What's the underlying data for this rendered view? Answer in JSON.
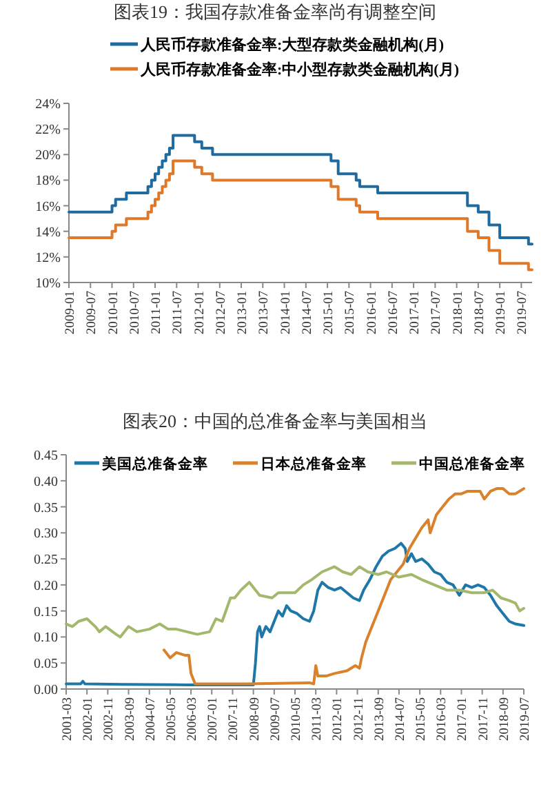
{
  "chart_data": [
    {
      "type": "step",
      "title": "图表19：我国存款准备金率尚有调整空间",
      "legend": "top",
      "grid": false,
      "xlim": [
        "2009-01",
        "2019-10"
      ],
      "xticks": [
        {
          "value": "2009-01",
          "label": "2009-01"
        },
        {
          "value": "2009-07",
          "label": "2009-07"
        },
        {
          "value": "2010-01",
          "label": "2010-01"
        },
        {
          "value": "2010-07",
          "label": "2010-07"
        },
        {
          "value": "2011-01",
          "label": "2011-01"
        },
        {
          "value": "2011-07",
          "label": "2011-07"
        },
        {
          "value": "2012-01",
          "label": "2012-01"
        },
        {
          "value": "2012-07",
          "label": "2012-07"
        },
        {
          "value": "2013-01",
          "label": "2013-01"
        },
        {
          "value": "2013-07",
          "label": "2013-07"
        },
        {
          "value": "2014-01",
          "label": "2014-01"
        },
        {
          "value": "2014-07",
          "label": "2014-07"
        },
        {
          "value": "2015-01",
          "label": "2015-01"
        },
        {
          "value": "2015-07",
          "label": "2015-07"
        },
        {
          "value": "2016-01",
          "label": "2016-01"
        },
        {
          "value": "2016-07",
          "label": "2016-07"
        },
        {
          "value": "2017-01",
          "label": "2017-01"
        },
        {
          "value": "2017-07",
          "label": "2017-07"
        },
        {
          "value": "2018-01",
          "label": "2018-01"
        },
        {
          "value": "2018-07",
          "label": "2018-07"
        },
        {
          "value": "2019-01",
          "label": "2019-01"
        },
        {
          "value": "2019-07",
          "label": "2019-07"
        }
      ],
      "ylim": [
        10,
        24
      ],
      "yticks": [
        {
          "value": 10,
          "label": "10%"
        },
        {
          "value": 12,
          "label": "12%"
        },
        {
          "value": 14,
          "label": "14%"
        },
        {
          "value": 16,
          "label": "16%"
        },
        {
          "value": 18,
          "label": "18%"
        },
        {
          "value": 20,
          "label": "20%"
        },
        {
          "value": 22,
          "label": "22%"
        },
        {
          "value": 24,
          "label": "24%"
        }
      ],
      "series": [
        {
          "name": "人民币存款准备金率:大型存款类金融机构(月)",
          "color": "#1f6a9e",
          "x": [
            "2009-01",
            "2010-01",
            "2010-02",
            "2010-05",
            "2010-11",
            "2010-12",
            "2011-01",
            "2011-02",
            "2011-03",
            "2011-04",
            "2011-05",
            "2011-06",
            "2011-12",
            "2012-02",
            "2012-05",
            "2015-02",
            "2015-04",
            "2015-09",
            "2015-10",
            "2016-03",
            "2018-04",
            "2018-07",
            "2018-10",
            "2019-01",
            "2019-09",
            "2019-10"
          ],
          "values": [
            15.5,
            16,
            16.5,
            17,
            17.5,
            18,
            18.5,
            19,
            19.5,
            20,
            20.5,
            21.5,
            21,
            20.5,
            20,
            19.5,
            18.5,
            18,
            17.5,
            17,
            16,
            15.5,
            14.5,
            13.5,
            13,
            13
          ]
        },
        {
          "name": "人民币存款准备金率:中小型存款类金融机构(月)",
          "color": "#e0782a",
          "x": [
            "2009-01",
            "2010-01",
            "2010-02",
            "2010-05",
            "2010-11",
            "2010-12",
            "2011-01",
            "2011-02",
            "2011-03",
            "2011-04",
            "2011-05",
            "2011-06",
            "2011-12",
            "2012-02",
            "2012-05",
            "2015-02",
            "2015-04",
            "2015-09",
            "2015-10",
            "2016-03",
            "2018-04",
            "2018-07",
            "2018-10",
            "2019-01",
            "2019-09",
            "2019-10"
          ],
          "values": [
            13.5,
            14,
            14.5,
            15,
            15.5,
            16,
            16.5,
            17,
            17.5,
            18,
            18.5,
            19.5,
            19,
            18.5,
            18,
            17.5,
            16.5,
            16,
            15.5,
            15,
            14,
            13.5,
            12.5,
            11.5,
            11,
            11
          ]
        }
      ]
    },
    {
      "type": "line",
      "title": "图表20：中国的总准备金率与美国相当",
      "legend": "top",
      "grid": false,
      "xlim": [
        "2001-03",
        "2019-07"
      ],
      "xticks": [
        {
          "value": "2001-03",
          "label": "2001-03"
        },
        {
          "value": "2002-01",
          "label": "2002-01"
        },
        {
          "value": "2002-11",
          "label": "2002-11"
        },
        {
          "value": "2003-09",
          "label": "2003-09"
        },
        {
          "value": "2004-07",
          "label": "2004-07"
        },
        {
          "value": "2005-05",
          "label": "2005-05"
        },
        {
          "value": "2006-03",
          "label": "2006-03"
        },
        {
          "value": "2007-01",
          "label": "2007-01"
        },
        {
          "value": "2007-11",
          "label": "2007-11"
        },
        {
          "value": "2008-09",
          "label": "2008-09"
        },
        {
          "value": "2009-07",
          "label": "2009-07"
        },
        {
          "value": "2010-05",
          "label": "2010-05"
        },
        {
          "value": "2011-03",
          "label": "2011-03"
        },
        {
          "value": "2012-01",
          "label": "2012-01"
        },
        {
          "value": "2012-11",
          "label": "2012-11"
        },
        {
          "value": "2013-09",
          "label": "2013-09"
        },
        {
          "value": "2014-07",
          "label": "2014-07"
        },
        {
          "value": "2015-05",
          "label": "2015-05"
        },
        {
          "value": "2016-03",
          "label": "2016-03"
        },
        {
          "value": "2017-01",
          "label": "2017-01"
        },
        {
          "value": "2017-11",
          "label": "2017-11"
        },
        {
          "value": "2018-09",
          "label": "2018-09"
        },
        {
          "value": "2019-07",
          "label": "2019-07"
        }
      ],
      "ylim": [
        0,
        0.45
      ],
      "yticks": [
        {
          "value": 0,
          "label": "0.00"
        },
        {
          "value": 0.05,
          "label": "0.05"
        },
        {
          "value": 0.1,
          "label": "0.10"
        },
        {
          "value": 0.15,
          "label": "0.15"
        },
        {
          "value": 0.2,
          "label": "0.20"
        },
        {
          "value": 0.25,
          "label": "0.25"
        },
        {
          "value": 0.3,
          "label": "0.30"
        },
        {
          "value": 0.35,
          "label": "0.35"
        },
        {
          "value": 0.4,
          "label": "0.40"
        },
        {
          "value": 0.45,
          "label": "0.45"
        }
      ],
      "series": [
        {
          "name": "美国总准备金率",
          "color": "#1f77a8",
          "x": [
            "2001-03",
            "2001-10",
            "2001-11",
            "2001-12",
            "2003-06",
            "2006-01",
            "2008-09",
            "2008-10",
            "2008-11",
            "2008-12",
            "2009-01",
            "2009-03",
            "2009-05",
            "2009-07",
            "2009-09",
            "2009-11",
            "2010-01",
            "2010-03",
            "2010-06",
            "2010-09",
            "2010-12",
            "2011-02",
            "2011-04",
            "2011-06",
            "2011-09",
            "2011-12",
            "2012-03",
            "2012-06",
            "2012-09",
            "2012-12",
            "2013-02",
            "2013-05",
            "2013-08",
            "2013-11",
            "2014-02",
            "2014-05",
            "2014-08",
            "2014-10",
            "2014-11",
            "2015-01",
            "2015-03",
            "2015-06",
            "2015-09",
            "2015-12",
            "2016-03",
            "2016-06",
            "2016-09",
            "2016-12",
            "2017-03",
            "2017-06",
            "2017-09",
            "2017-12",
            "2018-03",
            "2018-06",
            "2018-09",
            "2018-12",
            "2019-03",
            "2019-07"
          ],
          "values": [
            0.01,
            0.01,
            0.015,
            0.01,
            0.009,
            0.008,
            0.008,
            0.05,
            0.11,
            0.12,
            0.1,
            0.12,
            0.11,
            0.13,
            0.15,
            0.14,
            0.16,
            0.15,
            0.145,
            0.135,
            0.13,
            0.15,
            0.19,
            0.205,
            0.195,
            0.19,
            0.195,
            0.185,
            0.175,
            0.17,
            0.19,
            0.21,
            0.235,
            0.255,
            0.265,
            0.27,
            0.28,
            0.27,
            0.245,
            0.26,
            0.245,
            0.25,
            0.24,
            0.225,
            0.22,
            0.205,
            0.2,
            0.18,
            0.2,
            0.195,
            0.2,
            0.195,
            0.18,
            0.16,
            0.145,
            0.13,
            0.125,
            0.122
          ]
        },
        {
          "name": "日本总准备金率",
          "color": "#d9822b",
          "x": [
            "2005-02",
            "2005-05",
            "2005-08",
            "2005-12",
            "2006-02",
            "2006-03",
            "2006-05",
            "2008-06",
            "2010-12",
            "2011-02",
            "2011-03",
            "2011-04",
            "2011-08",
            "2011-12",
            "2012-06",
            "2012-10",
            "2012-12",
            "2013-01",
            "2013-03",
            "2013-06",
            "2013-09",
            "2013-12",
            "2014-03",
            "2014-06",
            "2014-09",
            "2014-12",
            "2015-03",
            "2015-06",
            "2015-09",
            "2015-10",
            "2016-01",
            "2016-04",
            "2016-07",
            "2016-10",
            "2017-01",
            "2017-04",
            "2017-07",
            "2017-10",
            "2017-12",
            "2018-03",
            "2018-06",
            "2018-09",
            "2018-12",
            "2019-03",
            "2019-05",
            "2019-07"
          ],
          "values": [
            0.075,
            0.06,
            0.07,
            0.065,
            0.065,
            0.03,
            0.01,
            0.01,
            0.012,
            0.01,
            0.045,
            0.025,
            0.025,
            0.03,
            0.035,
            0.045,
            0.04,
            0.06,
            0.09,
            0.12,
            0.15,
            0.18,
            0.21,
            0.225,
            0.24,
            0.27,
            0.29,
            0.31,
            0.325,
            0.3,
            0.335,
            0.35,
            0.365,
            0.375,
            0.375,
            0.38,
            0.38,
            0.38,
            0.365,
            0.38,
            0.385,
            0.385,
            0.375,
            0.375,
            0.38,
            0.385
          ]
        },
        {
          "name": "中国总准备金率",
          "color": "#a3b86c",
          "x": [
            "2001-03",
            "2001-06",
            "2001-09",
            "2002-01",
            "2002-05",
            "2002-07",
            "2002-10",
            "2003-03",
            "2003-05",
            "2003-09",
            "2004-01",
            "2004-07",
            "2004-12",
            "2005-04",
            "2005-08",
            "2006-01",
            "2006-06",
            "2006-12",
            "2007-03",
            "2007-06",
            "2007-10",
            "2007-12",
            "2008-03",
            "2008-07",
            "2008-12",
            "2009-06",
            "2009-09",
            "2010-01",
            "2010-05",
            "2010-09",
            "2011-01",
            "2011-06",
            "2011-12",
            "2012-04",
            "2012-08",
            "2012-12",
            "2013-04",
            "2013-09",
            "2014-01",
            "2014-07",
            "2015-01",
            "2015-06",
            "2015-12",
            "2016-06",
            "2016-12",
            "2017-06",
            "2017-12",
            "2018-04",
            "2018-08",
            "2018-12",
            "2019-03",
            "2019-05",
            "2019-07"
          ],
          "values": [
            0.125,
            0.12,
            0.13,
            0.135,
            0.12,
            0.11,
            0.12,
            0.105,
            0.1,
            0.12,
            0.11,
            0.115,
            0.125,
            0.115,
            0.115,
            0.11,
            0.105,
            0.11,
            0.135,
            0.13,
            0.175,
            0.175,
            0.19,
            0.205,
            0.18,
            0.175,
            0.185,
            0.185,
            0.185,
            0.2,
            0.21,
            0.225,
            0.235,
            0.225,
            0.22,
            0.235,
            0.225,
            0.22,
            0.225,
            0.215,
            0.22,
            0.21,
            0.2,
            0.19,
            0.19,
            0.185,
            0.185,
            0.19,
            0.175,
            0.17,
            0.165,
            0.15,
            0.155
          ]
        }
      ]
    }
  ]
}
